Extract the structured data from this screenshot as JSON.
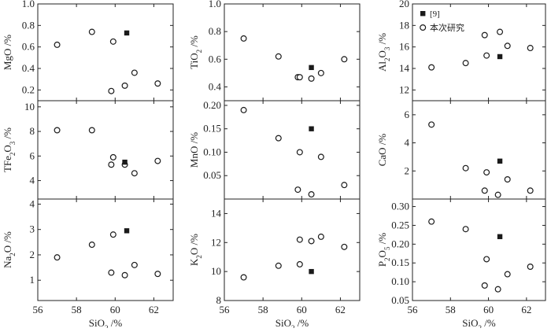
{
  "chart_data": {
    "type": "scatter",
    "layout": "3x3 small multiples with shared x axis per column",
    "x_axis": {
      "label": "SiO",
      "label_sub": "2",
      "label_suffix": " /%",
      "range": [
        56,
        63
      ],
      "ticks": [
        "56",
        "58",
        "60",
        "62"
      ]
    },
    "legend": {
      "placement": "top-left of upper-right panel",
      "entries": [
        {
          "marker": "filled-square",
          "label": "[9]"
        },
        {
          "marker": "open-circle",
          "label": "本次研究"
        }
      ]
    },
    "series_styles": {
      "reference": "#1a1a1a",
      "this_study": "#1a1a1a"
    },
    "panels": [
      {
        "row": 0,
        "col": 0,
        "ylabel": "MgO",
        "ylabel_sub": "",
        "ylabel_rest": "",
        "ylabel_suffix": " /%",
        "ylim": [
          0.1,
          1.0
        ],
        "yticks": [
          0.2,
          0.4,
          0.6,
          0.8,
          1.0
        ],
        "ytick_labels": [
          "0.2",
          "0.4",
          "0.6",
          "0.8",
          "1.0"
        ],
        "this_study": [
          [
            57.0,
            0.62
          ],
          [
            58.8,
            0.74
          ],
          [
            59.9,
            0.65
          ],
          [
            59.8,
            0.19
          ],
          [
            60.5,
            0.24
          ],
          [
            61.0,
            0.36
          ],
          [
            62.2,
            0.26
          ]
        ],
        "reference": [
          [
            60.6,
            0.73
          ]
        ]
      },
      {
        "row": 0,
        "col": 1,
        "ylabel": "TiO",
        "ylabel_sub": "2",
        "ylabel_rest": "",
        "ylabel_suffix": " /%",
        "ylim": [
          0.3,
          1.0
        ],
        "yticks": [
          0.4,
          0.6,
          0.8,
          1.0
        ],
        "ytick_labels": [
          "0.4",
          "0.6",
          "0.8",
          "1.0"
        ],
        "this_study": [
          [
            57.0,
            0.75
          ],
          [
            58.8,
            0.62
          ],
          [
            59.8,
            0.47
          ],
          [
            59.9,
            0.47
          ],
          [
            60.5,
            0.46
          ],
          [
            61.0,
            0.5
          ],
          [
            62.2,
            0.6
          ]
        ],
        "reference": [
          [
            60.5,
            0.54
          ]
        ]
      },
      {
        "row": 0,
        "col": 2,
        "ylabel": "Al",
        "ylabel_sub": "2",
        "ylabel_rest": "O",
        "ylabel_sub2": "3",
        "ylabel_suffix": " /%",
        "ylim": [
          11,
          20
        ],
        "yticks": [
          12,
          14,
          16,
          18,
          20
        ],
        "ytick_labels": [
          "12",
          "14",
          "16",
          "18",
          "20"
        ],
        "this_study": [
          [
            57.0,
            14.1
          ],
          [
            58.8,
            14.5
          ],
          [
            59.8,
            17.1
          ],
          [
            59.9,
            15.2
          ],
          [
            60.6,
            17.4
          ],
          [
            61.0,
            16.1
          ],
          [
            62.2,
            15.9
          ]
        ],
        "reference": [
          [
            60.6,
            15.1
          ]
        ]
      },
      {
        "row": 1,
        "col": 0,
        "ylabel": "TFe",
        "ylabel_sub": "2",
        "ylabel_rest": "O",
        "ylabel_sub2": "3",
        "ylabel_suffix": " /%",
        "ylim": [
          2.5,
          10.5
        ],
        "yticks": [
          4,
          6,
          8,
          10
        ],
        "ytick_labels": [
          "4",
          "6",
          "8",
          "10"
        ],
        "this_study": [
          [
            57.0,
            8.1
          ],
          [
            58.8,
            8.1
          ],
          [
            59.9,
            5.9
          ],
          [
            59.8,
            5.3
          ],
          [
            60.5,
            5.3
          ],
          [
            61.0,
            4.6
          ],
          [
            62.2,
            5.6
          ]
        ],
        "reference": [
          [
            60.5,
            5.5
          ]
        ]
      },
      {
        "row": 1,
        "col": 1,
        "ylabel": "MnO",
        "ylabel_sub": "",
        "ylabel_rest": "",
        "ylabel_suffix": " /%",
        "ylim": [
          0.0,
          0.21
        ],
        "yticks": [
          0.05,
          0.1,
          0.15,
          0.2
        ],
        "ytick_labels": [
          "0.05",
          "0.10",
          "0.15",
          "0.20"
        ],
        "this_study": [
          [
            57.0,
            0.19
          ],
          [
            58.8,
            0.13
          ],
          [
            59.9,
            0.1
          ],
          [
            59.8,
            0.02
          ],
          [
            60.5,
            0.01
          ],
          [
            61.0,
            0.09
          ],
          [
            62.2,
            0.03
          ]
        ],
        "reference": [
          [
            60.5,
            0.15
          ]
        ]
      },
      {
        "row": 1,
        "col": 2,
        "ylabel": "CaO",
        "ylabel_sub": "",
        "ylabel_rest": "",
        "ylabel_suffix": " /%",
        "ylim": [
          0,
          7
        ],
        "yticks": [
          2,
          4,
          6
        ],
        "ytick_labels": [
          "2",
          "4",
          "6"
        ],
        "this_study": [
          [
            57.0,
            5.3
          ],
          [
            58.8,
            2.2
          ],
          [
            59.9,
            1.9
          ],
          [
            59.8,
            0.6
          ],
          [
            60.5,
            0.3
          ],
          [
            61.0,
            1.4
          ],
          [
            62.2,
            0.6
          ]
        ],
        "reference": [
          [
            60.6,
            2.7
          ]
        ]
      },
      {
        "row": 2,
        "col": 0,
        "ylabel": "Na",
        "ylabel_sub": "2",
        "ylabel_rest": "O",
        "ylabel_suffix": " /%",
        "ylim": [
          0.2,
          4.2
        ],
        "yticks": [
          1,
          2,
          3,
          4
        ],
        "ytick_labels": [
          "1",
          "2",
          "3",
          "4"
        ],
        "this_study": [
          [
            57.0,
            1.9
          ],
          [
            58.8,
            2.4
          ],
          [
            59.9,
            2.8
          ],
          [
            59.8,
            1.3
          ],
          [
            60.5,
            1.2
          ],
          [
            61.0,
            1.6
          ],
          [
            62.2,
            1.25
          ]
        ],
        "reference": [
          [
            60.6,
            2.95
          ]
        ]
      },
      {
        "row": 2,
        "col": 1,
        "ylabel": "K",
        "ylabel_sub": "2",
        "ylabel_rest": "O",
        "ylabel_suffix": " /%",
        "ylim": [
          8,
          15
        ],
        "yticks": [
          8,
          10,
          12,
          14
        ],
        "ytick_labels": [
          "8",
          "10",
          "12",
          "14"
        ],
        "this_study": [
          [
            57.0,
            9.6
          ],
          [
            58.8,
            10.4
          ],
          [
            59.9,
            12.2
          ],
          [
            59.9,
            10.5
          ],
          [
            60.5,
            12.1
          ],
          [
            61.0,
            12.4
          ],
          [
            62.2,
            11.7
          ]
        ],
        "reference": [
          [
            60.5,
            10.0
          ]
        ]
      },
      {
        "row": 2,
        "col": 2,
        "ylabel": "P",
        "ylabel_sub": "2",
        "ylabel_rest": "O",
        "ylabel_sub2": "5",
        "ylabel_suffix": " /%",
        "ylim": [
          0.05,
          0.32
        ],
        "yticks": [
          0.05,
          0.1,
          0.15,
          0.2,
          0.25,
          0.3
        ],
        "ytick_labels": [
          "0.05",
          "0.10",
          "0.15",
          "0.20",
          "0.25",
          "0.30"
        ],
        "this_study": [
          [
            57.0,
            0.26
          ],
          [
            58.8,
            0.24
          ],
          [
            59.9,
            0.16
          ],
          [
            59.8,
            0.09
          ],
          [
            60.5,
            0.08
          ],
          [
            61.0,
            0.12
          ],
          [
            62.2,
            0.14
          ]
        ],
        "reference": [
          [
            60.6,
            0.22
          ]
        ]
      }
    ]
  }
}
